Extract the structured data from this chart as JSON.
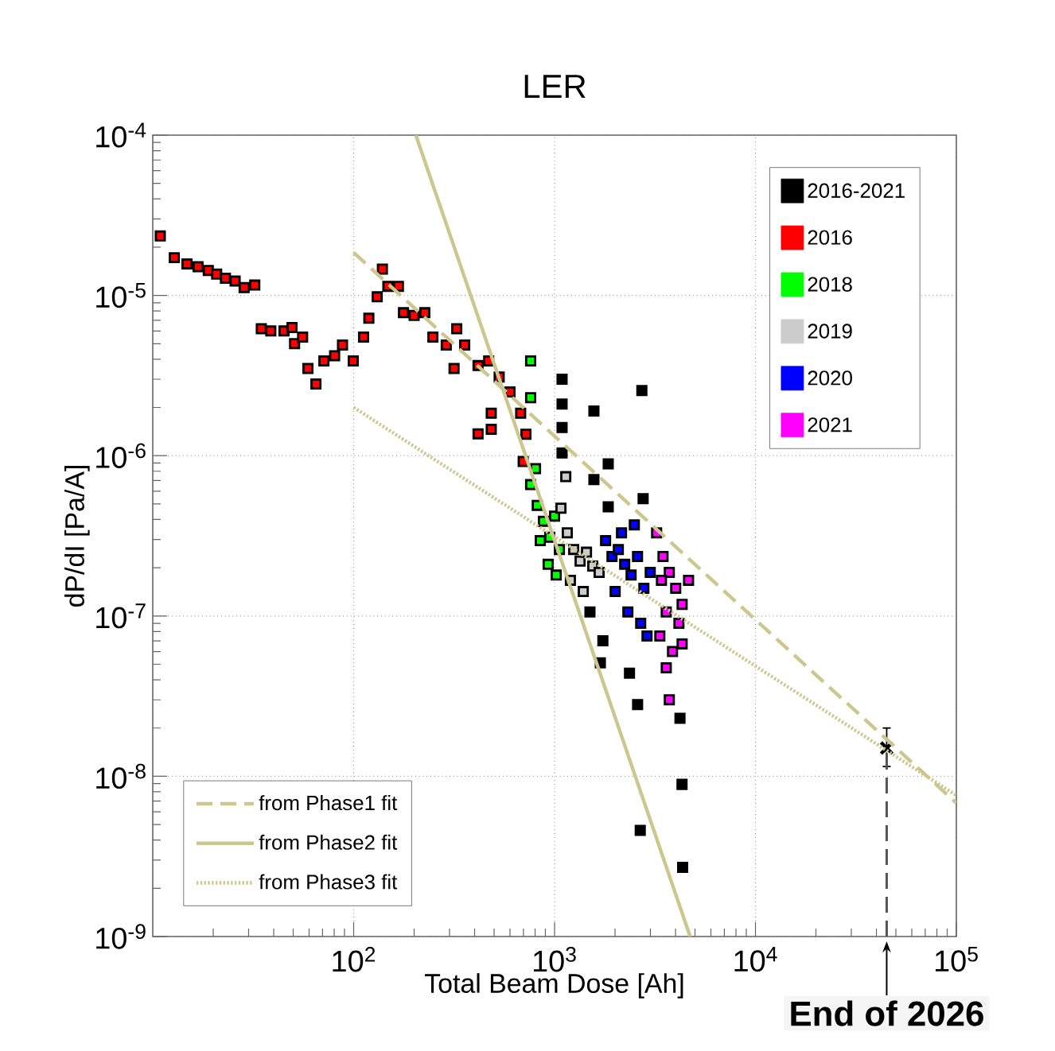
{
  "chart_data": {
    "type": "scatter",
    "title": "LER",
    "xlabel": "Total Beam Dose [Ah]",
    "ylabel": "dP/dI [Pa/A]",
    "log": "xy",
    "grid": true,
    "legend": "top right",
    "marker": "square",
    "xlim": [
      10,
      100000
    ],
    "ylim": [
      1e-09,
      0.0001
    ],
    "xticks": [
      {
        "value": 100,
        "label": "10$^{2}$"
      },
      {
        "value": 1000,
        "label": "10$^{3}$"
      },
      {
        "value": 10000,
        "label": "10$^{4}$"
      },
      {
        "value": 100000,
        "label": "10$^{5}$"
      }
    ],
    "yticks": [
      {
        "value": 1e-09,
        "label": "10$^{-9}$"
      },
      {
        "value": 1e-08,
        "label": "10$^{-8}$"
      },
      {
        "value": 1e-07,
        "label": "10$^{-7}$"
      },
      {
        "value": 1e-06,
        "label": "10$^{-6}$"
      },
      {
        "value": 1e-05,
        "label": "10$^{-5}$"
      },
      {
        "value": 0.0001,
        "label": "10$^{-4}$"
      }
    ],
    "series": [
      {
        "name": "2016-2021",
        "color": "#000000",
        "x": [
          1090,
          1090,
          1090,
          1570,
          2720,
          1850,
          1570,
          2760,
          1850,
          1090,
          2590,
          4210,
          4310,
          1690,
          2360,
          1500,
          1740,
          4340,
          2670
        ],
        "values": [
          3e-06,
          2.1e-06,
          1.5e-06,
          1.9e-06,
          2.55e-06,
          8.9e-07,
          7.1e-07,
          5.4e-07,
          4.8e-07,
          1.04e-06,
          2.8e-08,
          2.3e-08,
          8.9e-09,
          5.1e-08,
          4.4e-08,
          1.06e-07,
          7e-08,
          2.7e-09,
          4.6e-09
        ]
      },
      {
        "name": "2016",
        "color": "#ff0000",
        "x": [
          10.9,
          12.8,
          14.8,
          16.8,
          18.9,
          20.8,
          23,
          25.7,
          28.5,
          32.2,
          34.7,
          38.7,
          45,
          49.3,
          50.8,
          55.7,
          59.2,
          64.9,
          71.1,
          80.4,
          88,
          99.5,
          112,
          119,
          131,
          139,
          148,
          167,
          177,
          200,
          226,
          248,
          289,
          316,
          326,
          357,
          416,
          470,
          530,
          416,
          484,
          484,
          600,
          678,
          720,
          698
        ],
        "values": [
          2.35e-05,
          1.72e-05,
          1.57e-05,
          1.51e-05,
          1.43e-05,
          1.36e-05,
          1.28e-05,
          1.23e-05,
          1.12e-05,
          1.16e-05,
          6.2e-06,
          6e-06,
          6e-06,
          6.3e-06,
          5e-06,
          5.5e-06,
          3.5e-06,
          2.8e-06,
          3.9e-06,
          4.2e-06,
          4.9e-06,
          3.9e-06,
          5.5e-06,
          7.2e-06,
          9.8e-06,
          1.46e-05,
          1.14e-05,
          1.14e-05,
          7.8e-06,
          7.5e-06,
          7.8e-06,
          5.5e-06,
          4.9e-06,
          3.5e-06,
          6.2e-06,
          4.9e-06,
          3.65e-06,
          3.9e-06,
          3.1e-06,
          1.37e-06,
          1.46e-06,
          1.84e-06,
          2.5e-06,
          1.84e-06,
          1.36e-06,
          9.2e-07
        ]
      },
      {
        "name": "2018",
        "color": "#00ff00",
        "x": [
          760,
          760,
          760,
          820,
          880,
          946,
          1000,
          849,
          1057,
          929,
          1019,
          804
        ],
        "values": [
          3.9e-06,
          2.3e-06,
          6.6e-07,
          4.9e-07,
          3.9e-07,
          3.1e-07,
          4.2e-07,
          2.95e-07,
          2.6e-07,
          2.1e-07,
          1.8e-07,
          8.3e-07
        ]
      },
      {
        "name": "2019",
        "color": "#cccccc",
        "x": [
          1076,
          1157,
          1245,
          1340,
          1442,
          1549,
          1199,
          1390,
          1667,
          1137
        ],
        "values": [
          4.7e-07,
          3.3e-07,
          2.6e-07,
          2.2e-07,
          2.5e-07,
          2.05e-07,
          1.67e-07,
          1.42e-07,
          1.87e-07,
          7.4e-07
        ]
      },
      {
        "name": "2020",
        "color": "#0000ff",
        "x": [
          1795,
          1932,
          2077,
          2234,
          2404,
          2588,
          2783,
          2994,
          2003,
          2317,
          2684,
          2154,
          2495,
          2886
        ],
        "values": [
          2.95e-07,
          2.35e-07,
          2.6e-07,
          2.1e-07,
          1.8e-07,
          2.35e-07,
          1.49e-07,
          1.87e-07,
          1.42e-07,
          1.06e-07,
          9e-08,
          3.3e-07,
          3.7e-07,
          7.5e-08
        ]
      },
      {
        "name": "2021",
        "color": "#ff00ff",
        "x": [
          3221,
          3467,
          3726,
          4009,
          4315,
          3597,
          4159,
          3342,
          3865,
          3597,
          4315,
          4645,
          3404,
          3726
        ],
        "values": [
          3.3e-07,
          2.35e-07,
          1.87e-07,
          1.49e-07,
          1.18e-07,
          1.06e-07,
          9e-08,
          7.5e-08,
          6e-08,
          4.75e-08,
          6.7e-08,
          1.67e-07,
          1.67e-07,
          3e-08
        ]
      },
      {
        "name": "from Phase1 fit",
        "type": "line",
        "marker": "none",
        "line_style": "dashed",
        "color": "#cdc68f",
        "x": [
          100,
          100000
        ],
        "values": [
          1.85e-05,
          6.8e-09
        ]
      },
      {
        "name": "from Phase2 fit",
        "type": "line",
        "marker": "none",
        "line_style": "solid",
        "color": "#cdc68f",
        "x": [
          204,
          4730
        ],
        "values": [
          0.0001,
          1e-09
        ]
      },
      {
        "name": "from Phase3 fit",
        "type": "line",
        "marker": "none",
        "line_style": "dotted",
        "color": "#cdc68f",
        "x": [
          100,
          100000
        ],
        "values": [
          2e-06,
          7.6e-09
        ]
      },
      {
        "color": "#000000",
        "marker": "cross",
        "x": [
          45000
        ],
        "values": [
          1.5e-08
        ],
        "errors": [
          [
            1.15e-08,
            2e-08
          ]
        ]
      }
    ],
    "ref_lines": [
      {
        "axis": "x",
        "value": 45000,
        "label": "End of 2026",
        "line_style": "dashed",
        "color": "#555555"
      }
    ]
  }
}
